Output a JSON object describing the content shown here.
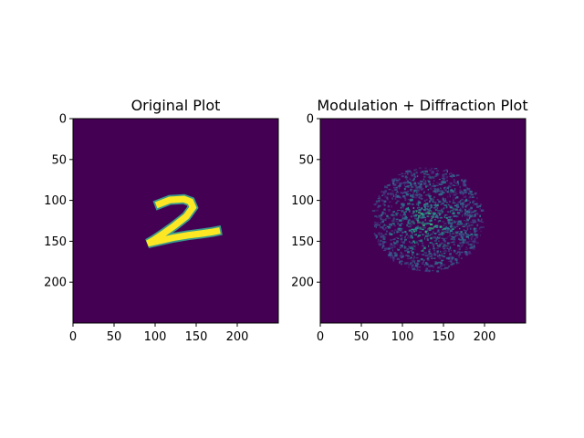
{
  "chart_data": [
    {
      "type": "heatmap",
      "title": "Original Plot",
      "xlabel": "",
      "ylabel": "",
      "image_size": [
        250,
        250
      ],
      "xlim": [
        0,
        250
      ],
      "ylim": [
        250,
        0
      ],
      "x_ticks": [
        0,
        50,
        100,
        150,
        200
      ],
      "y_ticks": [
        0,
        50,
        100,
        150,
        200
      ],
      "colormap": "viridis",
      "background_color": "#440154",
      "foreground_color": "#fde725",
      "content": "handwritten digit 2 centred near x 90-180, y 90-155"
    },
    {
      "type": "heatmap",
      "title": "Modulation + Diffraction Plot",
      "xlabel": "",
      "ylabel": "",
      "image_size": [
        250,
        250
      ],
      "xlim": [
        0,
        250
      ],
      "ylim": [
        250,
        0
      ],
      "x_ticks": [
        0,
        50,
        100,
        150,
        200
      ],
      "y_ticks": [
        0,
        50,
        100,
        150,
        200
      ],
      "colormap": "viridis",
      "background_color": "#440154",
      "content": "speckle intensity pattern concentrated around x 60-200, y 55-190"
    }
  ]
}
